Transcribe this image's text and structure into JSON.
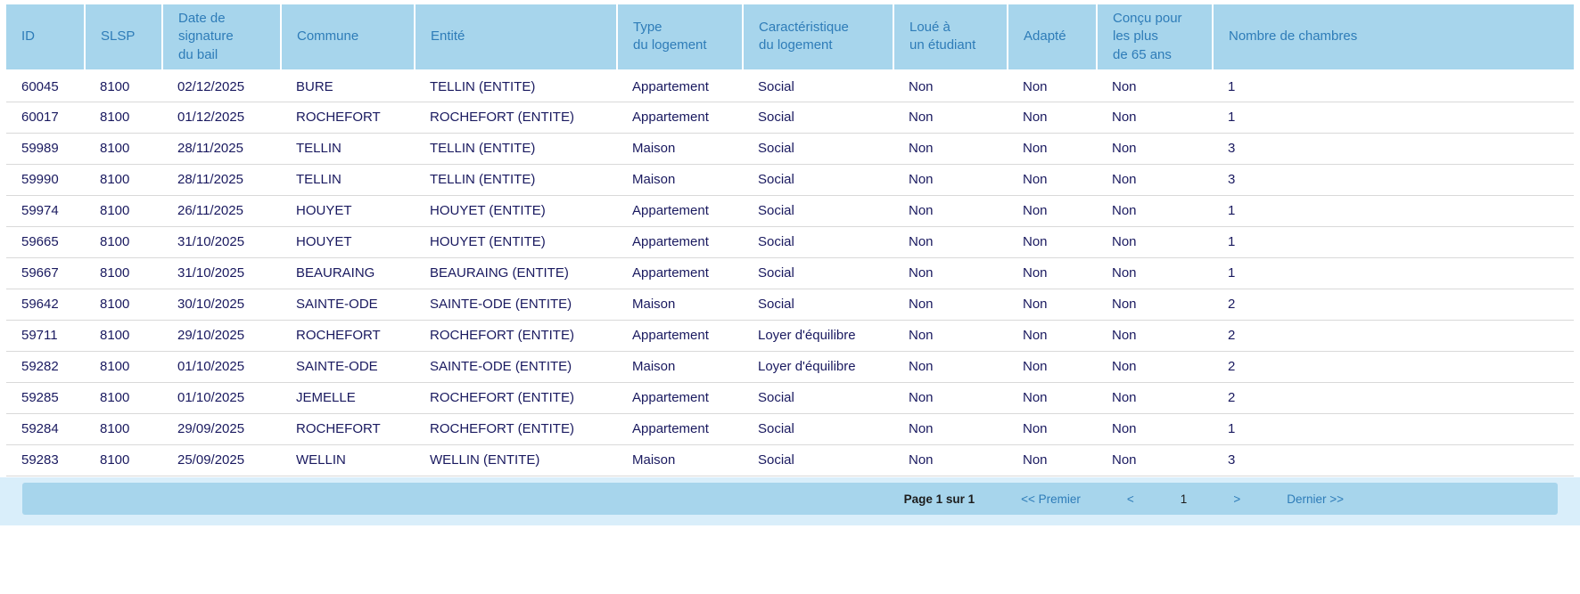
{
  "colors": {
    "header_bg": "#a7d5ec",
    "header_text": "#2e7cb8",
    "body_text": "#19195f",
    "row_separator": "#d9d9d9",
    "pager_outer_bg": "#d9eefa",
    "pager_inner_bg": "#a7d5ec",
    "link_blue": "#2e7cb8"
  },
  "table": {
    "columns": [
      {
        "label": "ID"
      },
      {
        "label": "SLSP"
      },
      {
        "label": "Date de\nsignature\ndu bail"
      },
      {
        "label": "Commune"
      },
      {
        "label": "Entité"
      },
      {
        "label": "Type\ndu logement"
      },
      {
        "label": "Caractéristique\ndu logement"
      },
      {
        "label": "Loué à\nun étudiant"
      },
      {
        "label": "Adapté"
      },
      {
        "label": "Conçu pour\nles plus\nde 65 ans"
      },
      {
        "label": "Nombre de chambres"
      }
    ],
    "rows": [
      [
        "60045",
        "8100",
        "02/12/2025",
        "BURE",
        "TELLIN (ENTITE)",
        "Appartement",
        "Social",
        "Non",
        "Non",
        "Non",
        "1"
      ],
      [
        "60017",
        "8100",
        "01/12/2025",
        "ROCHEFORT",
        "ROCHEFORT (ENTITE)",
        "Appartement",
        "Social",
        "Non",
        "Non",
        "Non",
        "1"
      ],
      [
        "59989",
        "8100",
        "28/11/2025",
        "TELLIN",
        "TELLIN (ENTITE)",
        "Maison",
        "Social",
        "Non",
        "Non",
        "Non",
        "3"
      ],
      [
        "59990",
        "8100",
        "28/11/2025",
        "TELLIN",
        "TELLIN (ENTITE)",
        "Maison",
        "Social",
        "Non",
        "Non",
        "Non",
        "3"
      ],
      [
        "59974",
        "8100",
        "26/11/2025",
        "HOUYET",
        "HOUYET (ENTITE)",
        "Appartement",
        "Social",
        "Non",
        "Non",
        "Non",
        "1"
      ],
      [
        "59665",
        "8100",
        "31/10/2025",
        "HOUYET",
        "HOUYET (ENTITE)",
        "Appartement",
        "Social",
        "Non",
        "Non",
        "Non",
        "1"
      ],
      [
        "59667",
        "8100",
        "31/10/2025",
        "BEAURAING",
        "BEAURAING (ENTITE)",
        "Appartement",
        "Social",
        "Non",
        "Non",
        "Non",
        "1"
      ],
      [
        "59642",
        "8100",
        "30/10/2025",
        "SAINTE-ODE",
        "SAINTE-ODE (ENTITE)",
        "Maison",
        "Social",
        "Non",
        "Non",
        "Non",
        "2"
      ],
      [
        "59711",
        "8100",
        "29/10/2025",
        "ROCHEFORT",
        "ROCHEFORT (ENTITE)",
        "Appartement",
        "Loyer d'équilibre",
        "Non",
        "Non",
        "Non",
        "2"
      ],
      [
        "59282",
        "8100",
        "01/10/2025",
        "SAINTE-ODE",
        "SAINTE-ODE (ENTITE)",
        "Maison",
        "Loyer d'équilibre",
        "Non",
        "Non",
        "Non",
        "2"
      ],
      [
        "59285",
        "8100",
        "01/10/2025",
        "JEMELLE",
        "ROCHEFORT (ENTITE)",
        "Appartement",
        "Social",
        "Non",
        "Non",
        "Non",
        "2"
      ],
      [
        "59284",
        "8100",
        "29/09/2025",
        "ROCHEFORT",
        "ROCHEFORT (ENTITE)",
        "Appartement",
        "Social",
        "Non",
        "Non",
        "Non",
        "1"
      ],
      [
        "59283",
        "8100",
        "25/09/2025",
        "WELLIN",
        "WELLIN (ENTITE)",
        "Maison",
        "Social",
        "Non",
        "Non",
        "Non",
        "3"
      ]
    ]
  },
  "pagination": {
    "page_label": "Page 1 sur 1",
    "first": "<< Premier",
    "prev": "<",
    "current": "1",
    "next": ">",
    "last": "Dernier >>"
  }
}
